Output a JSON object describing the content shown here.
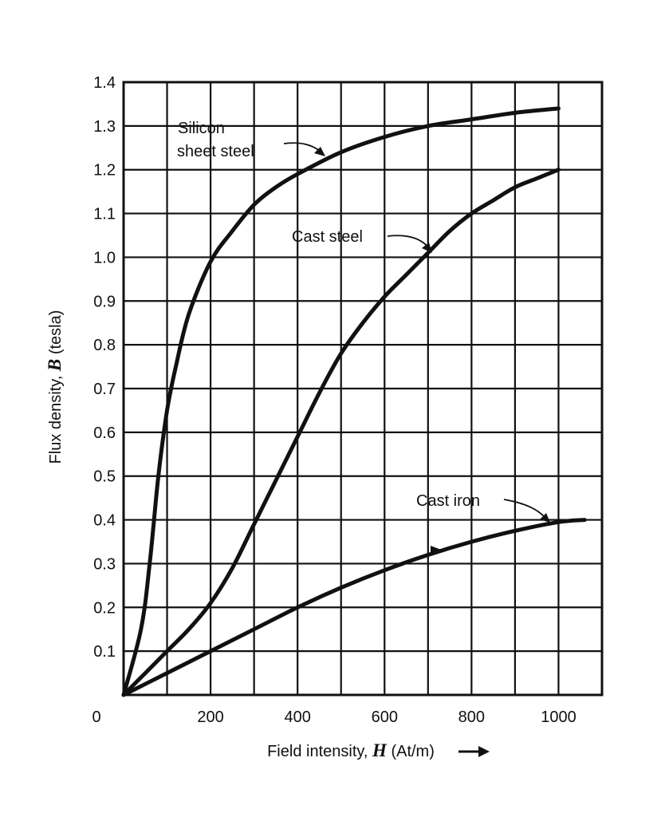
{
  "chart_data": {
    "type": "line",
    "title": "",
    "xlabel": "Field intensity, ",
    "xlabel_symbol": "H",
    "xlabel_unit": " (At/m)",
    "ylabel": "Flux density, ",
    "ylabel_symbol": "B",
    "ylabel_unit": " (tesla)",
    "xlim": [
      0,
      1100
    ],
    "ylim": [
      0,
      1.4
    ],
    "x_ticks": [
      "200",
      "400",
      "600",
      "800",
      "1000"
    ],
    "x_tick_values": [
      200,
      400,
      600,
      800,
      1000
    ],
    "origin_label": "0",
    "y_ticks": [
      "0.1",
      "0.2",
      "0.3",
      "0.4",
      "0.5",
      "0.6",
      "0.7",
      "0.8",
      "0.9",
      "1.0",
      "1.1",
      "1.2",
      "1.3",
      "1.4"
    ],
    "y_tick_values": [
      0.1,
      0.2,
      0.3,
      0.4,
      0.5,
      0.6,
      0.7,
      0.8,
      0.9,
      1.0,
      1.1,
      1.2,
      1.3,
      1.4
    ],
    "grid": true,
    "series": [
      {
        "name": "Silicon sheet steel",
        "x": [
          0,
          40,
          60,
          80,
          100,
          120,
          150,
          200,
          250,
          300,
          350,
          400,
          500,
          600,
          700,
          800,
          900,
          1000
        ],
        "y": [
          0,
          0.15,
          0.3,
          0.5,
          0.65,
          0.75,
          0.87,
          0.99,
          1.06,
          1.12,
          1.16,
          1.19,
          1.24,
          1.275,
          1.3,
          1.315,
          1.33,
          1.34
        ]
      },
      {
        "name": "Cast steel",
        "x": [
          0,
          50,
          100,
          150,
          200,
          250,
          300,
          350,
          400,
          450,
          500,
          550,
          600,
          650,
          700,
          750,
          800,
          850,
          900,
          950,
          1000
        ],
        "y": [
          0,
          0.05,
          0.1,
          0.15,
          0.21,
          0.29,
          0.39,
          0.49,
          0.59,
          0.69,
          0.78,
          0.85,
          0.91,
          0.96,
          1.01,
          1.06,
          1.1,
          1.13,
          1.16,
          1.18,
          1.2
        ]
      },
      {
        "name": "Cast iron",
        "x": [
          0,
          100,
          200,
          300,
          400,
          500,
          600,
          700,
          800,
          900,
          1000,
          1060
        ],
        "y": [
          0,
          0.05,
          0.1,
          0.15,
          0.2,
          0.245,
          0.285,
          0.32,
          0.35,
          0.375,
          0.395,
          0.4
        ]
      }
    ],
    "annotations": {
      "silicon_line1": "Silicon",
      "silicon_line2": "sheet steel",
      "cast_steel": "Cast steel",
      "cast_iron": "Cast iron"
    }
  }
}
